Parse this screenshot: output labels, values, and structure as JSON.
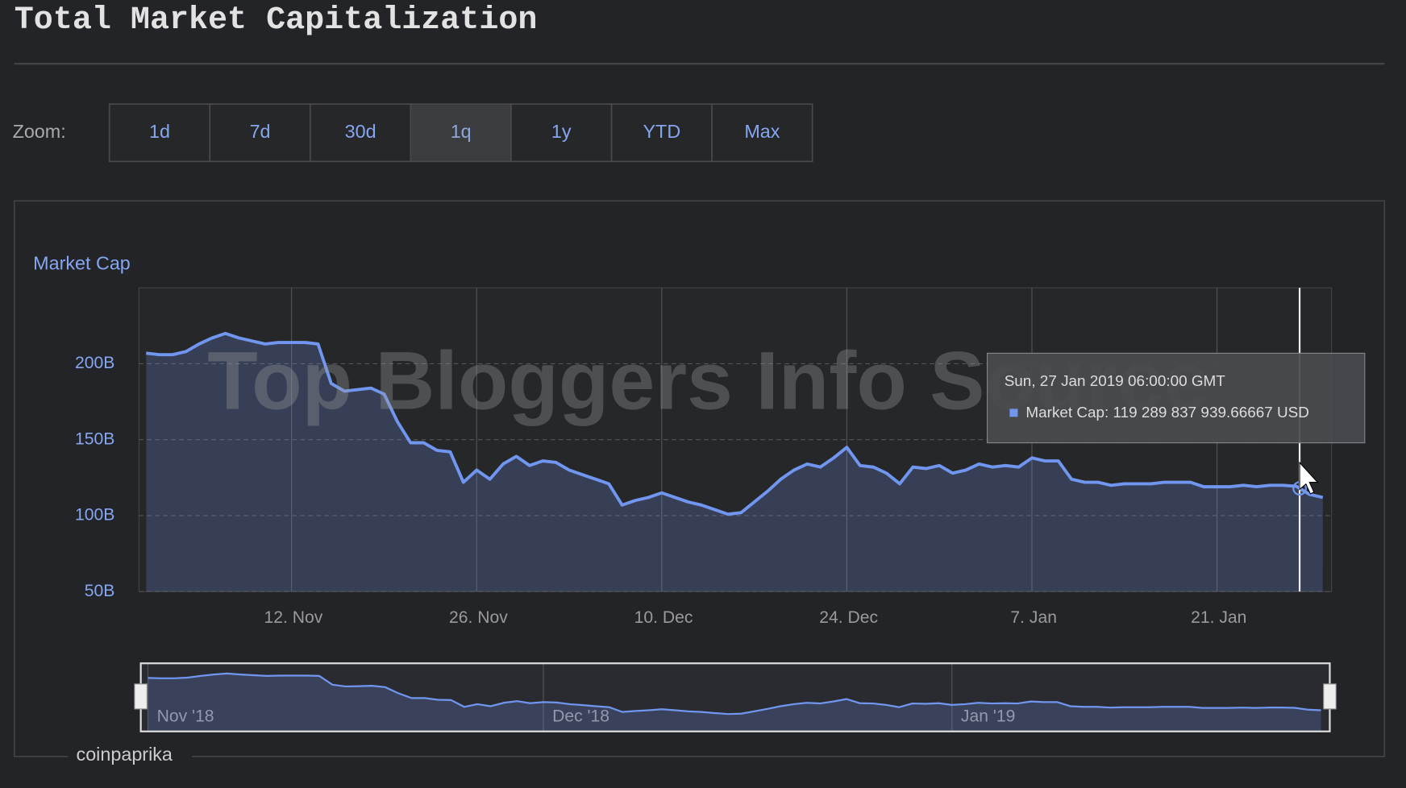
{
  "header": {
    "title": "Total Market Capitalization"
  },
  "zoom": {
    "label": "Zoom:",
    "buttons": [
      "1d",
      "7d",
      "30d",
      "1q",
      "1y",
      "YTD",
      "Max"
    ],
    "selected": "1q"
  },
  "watermark": "Top Bloggers Info Source",
  "credit": "coinpaprika",
  "tooltip": {
    "date": "Sun, 27 Jan 2019 06:00:00 GMT",
    "text": "Market Cap: 119 289 837 939.66667 USD"
  },
  "chart_data": {
    "type": "line",
    "x": [
      "2018-11-01",
      "2018-11-02",
      "2018-11-03",
      "2018-11-04",
      "2018-11-05",
      "2018-11-06",
      "2018-11-07",
      "2018-11-08",
      "2018-11-09",
      "2018-11-10",
      "2018-11-11",
      "2018-11-12",
      "2018-11-13",
      "2018-11-14",
      "2018-11-15",
      "2018-11-16",
      "2018-11-17",
      "2018-11-18",
      "2018-11-19",
      "2018-11-20",
      "2018-11-21",
      "2018-11-22",
      "2018-11-23",
      "2018-11-24",
      "2018-11-25",
      "2018-11-26",
      "2018-11-27",
      "2018-11-28",
      "2018-11-29",
      "2018-11-30",
      "2018-12-01",
      "2018-12-02",
      "2018-12-03",
      "2018-12-04",
      "2018-12-05",
      "2018-12-06",
      "2018-12-07",
      "2018-12-08",
      "2018-12-09",
      "2018-12-10",
      "2018-12-11",
      "2018-12-12",
      "2018-12-13",
      "2018-12-14",
      "2018-12-15",
      "2018-12-16",
      "2018-12-17",
      "2018-12-18",
      "2018-12-19",
      "2018-12-20",
      "2018-12-21",
      "2018-12-22",
      "2018-12-23",
      "2018-12-24",
      "2018-12-25",
      "2018-12-26",
      "2018-12-27",
      "2018-12-28",
      "2018-12-29",
      "2018-12-30",
      "2018-12-31",
      "2019-01-01",
      "2019-01-02",
      "2019-01-03",
      "2019-01-04",
      "2019-01-05",
      "2019-01-06",
      "2019-01-07",
      "2019-01-08",
      "2019-01-09",
      "2019-01-10",
      "2019-01-11",
      "2019-01-12",
      "2019-01-13",
      "2019-01-14",
      "2019-01-15",
      "2019-01-16",
      "2019-01-17",
      "2019-01-18",
      "2019-01-19",
      "2019-01-20",
      "2019-01-21",
      "2019-01-22",
      "2019-01-23",
      "2019-01-24",
      "2019-01-25",
      "2019-01-26",
      "2019-01-27",
      "2019-01-28",
      "2019-01-29"
    ],
    "series": [
      {
        "name": "Market Cap",
        "color": "#7196f0",
        "values": [
          207,
          206,
          206,
          208,
          213,
          217,
          220,
          217,
          215,
          213,
          214,
          214,
          214,
          213,
          187,
          182,
          183,
          184,
          180,
          162,
          148,
          148,
          143,
          142,
          122,
          130,
          124,
          134,
          139,
          133,
          136,
          135,
          130,
          127,
          124,
          121,
          107,
          110,
          112,
          115,
          112,
          109,
          107,
          104,
          101,
          102,
          109,
          116,
          124,
          130,
          134,
          132,
          138,
          145,
          133,
          132,
          128,
          121,
          132,
          131,
          133,
          128,
          130,
          134,
          132,
          133,
          132,
          138,
          136,
          136,
          124,
          122,
          122,
          120,
          121,
          121,
          121,
          122,
          122,
          122,
          119,
          119,
          119,
          120,
          119,
          120,
          120,
          119.3,
          114,
          112
        ]
      }
    ],
    "xlim": [
      "2018-10-31T11:00:00Z",
      "2019-01-29T16:00:00Z"
    ],
    "xticks": [
      {
        "value": "2018-11-12",
        "label": "12. Nov"
      },
      {
        "value": "2018-11-26",
        "label": "26. Nov"
      },
      {
        "value": "2018-12-10",
        "label": "10. Dec"
      },
      {
        "value": "2018-12-24",
        "label": "24. Dec"
      },
      {
        "value": "2019-01-07",
        "label": "7. Jan"
      },
      {
        "value": "2019-01-21",
        "label": "21. Jan"
      }
    ],
    "ylim": [
      50,
      250
    ],
    "yticks": [
      {
        "value": 50,
        "label": "50B"
      },
      {
        "value": 100,
        "label": "100B"
      },
      {
        "value": 150,
        "label": "150B"
      },
      {
        "value": 200,
        "label": "200B"
      }
    ],
    "grid": true,
    "navigator": {
      "xticks": [
        {
          "value": "2018-11-01",
          "label": "Nov '18"
        },
        {
          "value": "2018-12-01",
          "label": "Dec '18"
        },
        {
          "value": "2019-01-01",
          "label": "Jan '19"
        }
      ]
    }
  }
}
